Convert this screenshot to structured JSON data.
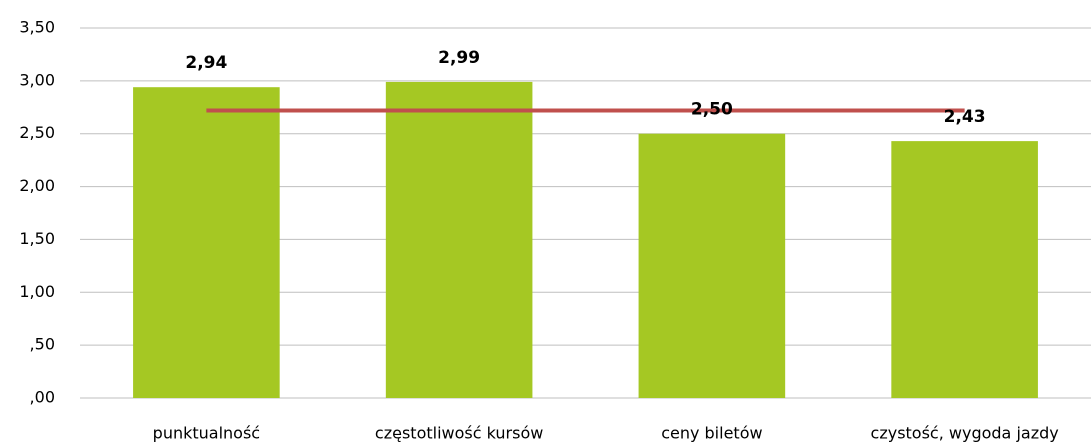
{
  "chart_data": {
    "type": "bar",
    "categories": [
      "punktualność",
      "częstotliwość kursów",
      "ceny biletów",
      "czystość, wygoda jazdy"
    ],
    "series": [
      {
        "color": "#a5c823",
        "values": [
          2.94,
          2.99,
          2.5,
          2.43
        ],
        "value_labels": [
          "2,94",
          "2,99",
          "2,50",
          "2,43"
        ]
      },
      {
        "type": "line",
        "color": "#c0504d",
        "values": [
          2.72,
          2.72,
          2.72,
          2.72
        ]
      }
    ],
    "ylim": [
      0,
      3.5
    ],
    "yticks": [
      {
        "value": 0,
        "label": ",00"
      },
      {
        "value": 0.5,
        "label": ",50"
      },
      {
        "value": 1,
        "label": "1,00"
      },
      {
        "value": 1.5,
        "label": "1,50"
      },
      {
        "value": 2,
        "label": "2,00"
      },
      {
        "value": 2.5,
        "label": "2,50"
      },
      {
        "value": 3,
        "label": "3,00"
      },
      {
        "value": 3.5,
        "label": "3,50"
      }
    ],
    "grid": true
  }
}
